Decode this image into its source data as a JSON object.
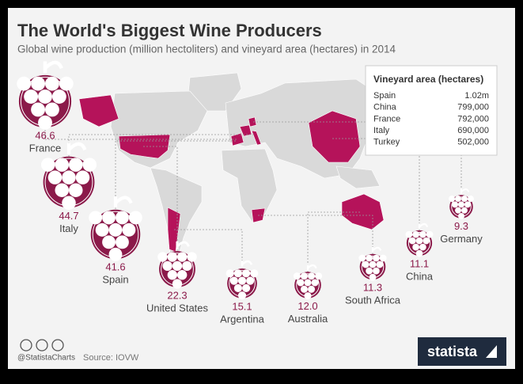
{
  "chart_data": {
    "type": "bubble",
    "title": "The World's Biggest Wine Producers",
    "subtitle": "Global wine production (million hectoliters) and vineyard area (hectares) in 2014",
    "categories": [
      "France",
      "Italy",
      "Spain",
      "United States",
      "Argentina",
      "Australia",
      "South Africa",
      "China",
      "Germany"
    ],
    "values": [
      46.6,
      44.7,
      41.6,
      22.3,
      15.1,
      12,
      11.3,
      11.1,
      9.3
    ],
    "value_labels": [
      "46.6",
      "44.7",
      "41.6",
      "22.3",
      "15.1",
      "12.0",
      "11.3",
      "11.1",
      "9.3"
    ],
    "color": "#8b1a4a"
  },
  "table": {
    "title": "Vineyard area (hectares)",
    "rows": [
      [
        "Spain",
        "1.02m"
      ],
      [
        "China",
        "799,000"
      ],
      [
        "France",
        "792,000"
      ],
      [
        "Italy",
        "690,000"
      ],
      [
        "Turkey",
        "502,000"
      ]
    ]
  },
  "footer": {
    "handle": "@StatistaCharts",
    "source": "Source: IOVW",
    "brand": "statista"
  }
}
